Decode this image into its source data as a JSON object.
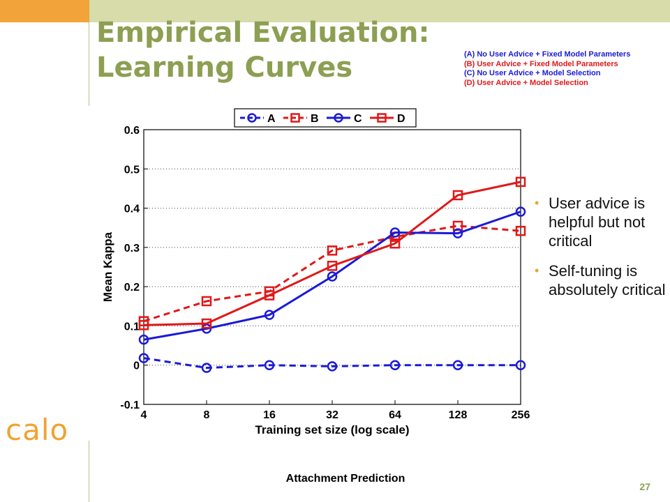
{
  "slide": {
    "title_line1": "Empirical Evaluation:",
    "title_line2": "Learning Curves",
    "notes": [
      {
        "text": "(A) No User Advice + Fixed Model Parameters",
        "color": "#1a1ad6"
      },
      {
        "text": "(B) User Advice + Fixed Model Parameters",
        "color": "#e01818"
      },
      {
        "text": "(C) No User Advice + Model Selection",
        "color": "#1a1ad6"
      },
      {
        "text": "(D) User Advice + Model Selection",
        "color": "#e01818"
      }
    ],
    "bullets": [
      "User advice is helpful but not critical",
      "Self-tuning is absolutely critical"
    ],
    "logo": "calo",
    "caption": "Attachment Prediction",
    "page_number": "27",
    "colors": {
      "accent_orange": "#f2a33a",
      "band": "#d7dcaa",
      "title_green": "#8c9f52"
    }
  },
  "chart_data": {
    "type": "line",
    "xlabel": "Training set size (log scale)",
    "ylabel": "Mean Kappa",
    "x": [
      4,
      8,
      16,
      32,
      64,
      128,
      256
    ],
    "x_scale": "log2",
    "ylim": [
      -0.1,
      0.6
    ],
    "yticks": [
      "-0.1",
      "0",
      "0.1",
      "0.2",
      "0.3",
      "0.4",
      "0.5",
      "0.6"
    ],
    "grid": "dotted horizontal",
    "legend": "top-center",
    "series": [
      {
        "name": "A",
        "color": "#1a1ad6",
        "dash": true,
        "marker": "circle",
        "values": [
          0.018,
          -0.007,
          0.0,
          -0.003,
          0.0,
          0.0,
          0.0
        ]
      },
      {
        "name": "B",
        "color": "#e01818",
        "dash": true,
        "marker": "square",
        "values": [
          0.112,
          0.163,
          0.188,
          0.292,
          0.327,
          0.355,
          0.342
        ]
      },
      {
        "name": "C",
        "color": "#1a1ad6",
        "dash": false,
        "marker": "circle",
        "values": [
          0.065,
          0.093,
          0.128,
          0.226,
          0.338,
          0.336,
          0.391
        ]
      },
      {
        "name": "D",
        "color": "#e01818",
        "dash": false,
        "marker": "square",
        "values": [
          0.102,
          0.106,
          0.178,
          0.253,
          0.31,
          0.433,
          0.467
        ]
      }
    ]
  }
}
